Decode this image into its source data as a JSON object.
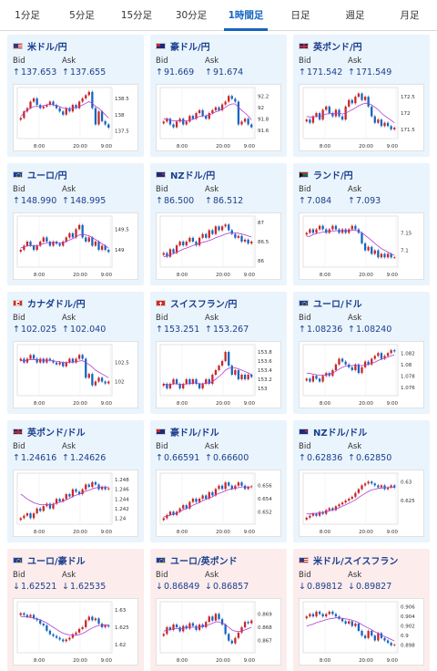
{
  "tabs": [
    "1分足",
    "5分足",
    "15分足",
    "30分足",
    "1時間足",
    "日足",
    "週足",
    "月足"
  ],
  "active_tab": 4,
  "bid_label": "Bid",
  "ask_label": "Ask",
  "xticks": [
    "8:00",
    "20:00",
    "9:00"
  ],
  "colors": {
    "up": "#c62828",
    "down": "#1565c0",
    "ma": "#b23ccf",
    "accent": "#1565c0",
    "up_bg": "#eaf4fc",
    "down_bg": "#fcecec"
  },
  "pairs": [
    {
      "name": "米ドル/円",
      "flag": "flag-us",
      "dir": "up",
      "arrow": "↑",
      "bid": "137.653",
      "ask": "137.655",
      "yticks": [
        "138.5",
        "138",
        "137.5"
      ],
      "ylim": [
        137.35,
        138.75
      ],
      "close": [
        137.9,
        138.1,
        138.2,
        138.4,
        138.5,
        138.3,
        138.2,
        138.25,
        138.3,
        138.4,
        138.3,
        138.2,
        138.1,
        138.0,
        138.2,
        138.1,
        138.3,
        138.2,
        138.4,
        138.5,
        138.6,
        138.7,
        138.2,
        137.7,
        138.1,
        137.8,
        137.7,
        137.6
      ],
      "ma": [
        137.95,
        138.05,
        138.15,
        138.2,
        138.25,
        138.25,
        138.25,
        138.28,
        138.3,
        138.32,
        138.3,
        138.28,
        138.25,
        138.2,
        138.2,
        138.18,
        138.2,
        138.22,
        138.25,
        138.3,
        138.35,
        138.4,
        138.35,
        138.25,
        138.2,
        138.1,
        138.0,
        137.9
      ]
    },
    {
      "name": "豪ドル/円",
      "flag": "flag-au",
      "dir": "up",
      "arrow": "↑",
      "bid": "91.669",
      "ask": "91.674",
      "yticks": [
        "92.2",
        "92",
        "91.8",
        "91.6"
      ],
      "ylim": [
        91.5,
        92.3
      ],
      "close": [
        91.75,
        91.8,
        91.7,
        91.65,
        91.75,
        91.8,
        91.7,
        91.75,
        91.85,
        91.8,
        91.9,
        91.95,
        91.85,
        91.8,
        91.9,
        91.95,
        92.0,
        91.95,
        92.05,
        92.1,
        92.2,
        92.15,
        92.1,
        91.7,
        91.75,
        91.8,
        91.7,
        91.65
      ],
      "ma": [
        91.8,
        91.8,
        91.78,
        91.76,
        91.76,
        91.77,
        91.76,
        91.76,
        91.78,
        91.79,
        91.81,
        91.84,
        91.85,
        91.85,
        91.87,
        91.89,
        91.92,
        91.94,
        91.97,
        92.0,
        92.04,
        92.06,
        92.06,
        92.0,
        91.95,
        91.9,
        91.85,
        91.78
      ]
    },
    {
      "name": "英ポンド/円",
      "flag": "flag-gb",
      "dir": "up",
      "arrow": "↑",
      "bid": "171.542",
      "ask": "171.549",
      "yticks": [
        "172.5",
        "172",
        "171.5"
      ],
      "ylim": [
        171.3,
        172.7
      ],
      "close": [
        171.8,
        171.7,
        171.9,
        172.0,
        171.8,
        172.1,
        172.2,
        172.0,
        171.9,
        172.1,
        171.9,
        171.8,
        172.2,
        172.4,
        172.3,
        172.5,
        172.6,
        172.4,
        172.5,
        172.2,
        171.9,
        171.7,
        171.8,
        171.6,
        171.7,
        171.6,
        171.5,
        171.55
      ],
      "ma": [
        171.9,
        171.88,
        171.88,
        171.9,
        171.9,
        171.93,
        171.97,
        171.98,
        171.98,
        172.0,
        171.99,
        171.97,
        172.0,
        172.05,
        172.1,
        172.16,
        172.22,
        172.27,
        172.3,
        172.3,
        172.25,
        172.18,
        172.1,
        172.0,
        171.92,
        171.85,
        171.78,
        171.7
      ]
    },
    {
      "name": "ユーロ/円",
      "flag": "flag-eu",
      "dir": "up",
      "arrow": "↑",
      "bid": "148.990",
      "ask": "148.995",
      "yticks": [
        "149.5",
        "149"
      ],
      "ylim": [
        148.65,
        149.75
      ],
      "close": [
        149.0,
        149.1,
        149.2,
        149.1,
        149.0,
        149.1,
        149.2,
        149.3,
        149.2,
        149.1,
        149.2,
        149.15,
        149.1,
        149.2,
        149.3,
        149.4,
        149.3,
        149.5,
        149.6,
        149.3,
        149.2,
        149.3,
        149.1,
        149.2,
        149.0,
        149.1,
        149.0,
        148.95
      ],
      "ma": [
        149.05,
        149.07,
        149.1,
        149.1,
        149.1,
        149.1,
        149.12,
        149.15,
        149.17,
        149.17,
        149.18,
        149.18,
        149.17,
        149.17,
        149.2,
        149.24,
        149.27,
        149.31,
        149.36,
        149.37,
        149.36,
        149.34,
        149.3,
        149.25,
        149.2,
        149.15,
        149.1,
        149.05
      ]
    },
    {
      "name": "NZドル/円",
      "flag": "flag-nz",
      "dir": "up",
      "arrow": "↑",
      "bid": "86.500",
      "ask": "86.512",
      "yticks": [
        "87",
        "86.5",
        "86"
      ],
      "ylim": [
        85.9,
        87.1
      ],
      "close": [
        86.2,
        86.1,
        86.3,
        86.2,
        86.4,
        86.5,
        86.4,
        86.5,
        86.6,
        86.5,
        86.4,
        86.6,
        86.7,
        86.6,
        86.8,
        86.7,
        86.9,
        86.8,
        86.9,
        86.95,
        86.8,
        86.7,
        86.6,
        86.65,
        86.5,
        86.55,
        86.45,
        86.5
      ],
      "ma": [
        86.1,
        86.12,
        86.15,
        86.18,
        86.22,
        86.26,
        86.3,
        86.33,
        86.36,
        86.4,
        86.42,
        86.45,
        86.48,
        86.5,
        86.53,
        86.56,
        86.6,
        86.63,
        86.66,
        86.7,
        86.72,
        86.73,
        86.73,
        86.72,
        86.7,
        86.68,
        86.65,
        86.62
      ]
    },
    {
      "name": "ランド/円",
      "flag": "flag-za",
      "dir": "up",
      "arrow": "↑",
      "bid": "7.084",
      "ask": "7.093",
      "yticks": [
        "7.15",
        "7.1"
      ],
      "ylim": [
        7.06,
        7.19
      ],
      "close": [
        7.15,
        7.16,
        7.15,
        7.16,
        7.17,
        7.16,
        7.15,
        7.16,
        7.17,
        7.16,
        7.15,
        7.16,
        7.15,
        7.16,
        7.17,
        7.16,
        7.15,
        7.12,
        7.1,
        7.11,
        7.09,
        7.1,
        7.08,
        7.09,
        7.08,
        7.09,
        7.08,
        7.08
      ],
      "ma": [
        7.14,
        7.14,
        7.145,
        7.148,
        7.15,
        7.152,
        7.153,
        7.154,
        7.155,
        7.156,
        7.156,
        7.156,
        7.156,
        7.156,
        7.157,
        7.157,
        7.155,
        7.15,
        7.143,
        7.136,
        7.128,
        7.12,
        7.112,
        7.105,
        7.1,
        7.095,
        7.09,
        7.086
      ]
    },
    {
      "name": "カナダドル/円",
      "flag": "flag-ca",
      "dir": "up",
      "arrow": "↑",
      "bid": "102.025",
      "ask": "102.040",
      "yticks": [
        "102.5",
        "102"
      ],
      "ylim": [
        101.7,
        102.9
      ],
      "close": [
        102.6,
        102.5,
        102.6,
        102.7,
        102.6,
        102.5,
        102.6,
        102.5,
        102.6,
        102.55,
        102.5,
        102.45,
        102.5,
        102.4,
        102.5,
        102.6,
        102.5,
        102.6,
        102.7,
        102.6,
        102.1,
        102.2,
        101.9,
        102.0,
        102.1,
        102.0,
        101.95,
        102.0
      ],
      "ma": [
        102.55,
        102.55,
        102.56,
        102.58,
        102.58,
        102.57,
        102.57,
        102.56,
        102.56,
        102.56,
        102.55,
        102.53,
        102.52,
        102.5,
        102.5,
        102.51,
        102.51,
        102.52,
        102.54,
        102.55,
        102.5,
        102.45,
        102.38,
        102.3,
        102.25,
        102.2,
        102.15,
        102.1
      ]
    },
    {
      "name": "スイスフラン/円",
      "flag": "flag-ch",
      "dir": "up",
      "arrow": "↑",
      "bid": "153.251",
      "ask": "153.267",
      "yticks": [
        "153.8",
        "153.6",
        "153.4",
        "153.2",
        "153"
      ],
      "ylim": [
        152.9,
        153.9
      ],
      "close": [
        153.1,
        153.0,
        153.1,
        153.2,
        153.1,
        153.0,
        153.1,
        153.2,
        153.1,
        153.2,
        153.1,
        153.0,
        153.1,
        153.2,
        153.1,
        153.3,
        153.4,
        153.5,
        153.6,
        153.8,
        153.5,
        153.3,
        153.4,
        153.2,
        153.3,
        153.2,
        153.3,
        153.25
      ],
      "ma": [
        153.1,
        153.08,
        153.08,
        153.1,
        153.1,
        153.09,
        153.09,
        153.1,
        153.1,
        153.12,
        153.12,
        153.1,
        153.1,
        153.12,
        153.12,
        153.15,
        153.2,
        153.26,
        153.32,
        153.4,
        153.44,
        153.45,
        153.45,
        153.43,
        153.4,
        153.37,
        153.34,
        153.3
      ]
    },
    {
      "name": "ユーロ/ドル",
      "flag": "flag-eu",
      "dir": "up",
      "arrow": "↑",
      "bid": "1.08236",
      "ask": "1.08240",
      "yticks": [
        "1.082",
        "1.08",
        "1.078",
        "1.076"
      ],
      "ylim": [
        1.075,
        1.083
      ],
      "close": [
        1.0775,
        1.077,
        1.078,
        1.0775,
        1.077,
        1.078,
        1.0785,
        1.078,
        1.079,
        1.08,
        1.081,
        1.0805,
        1.08,
        1.0795,
        1.079,
        1.08,
        1.0785,
        1.0795,
        1.0805,
        1.08,
        1.081,
        1.0815,
        1.082,
        1.081,
        1.0815,
        1.082,
        1.0825,
        1.0823
      ],
      "ma": [
        1.0785,
        1.0784,
        1.0783,
        1.0782,
        1.0781,
        1.0781,
        1.0782,
        1.0783,
        1.0785,
        1.0788,
        1.0792,
        1.0795,
        1.0797,
        1.0798,
        1.0798,
        1.0799,
        1.0798,
        1.0798,
        1.0799,
        1.08,
        1.0802,
        1.0804,
        1.0807,
        1.0809,
        1.0811,
        1.0813,
        1.0815,
        1.0817
      ]
    },
    {
      "name": "英ポンド/ドル",
      "flag": "flag-gb",
      "dir": "up",
      "arrow": "↑",
      "bid": "1.24616",
      "ask": "1.24626",
      "yticks": [
        "1.248",
        "1.246",
        "1.244",
        "1.242",
        "1.24"
      ],
      "ylim": [
        1.2393,
        1.2488
      ],
      "close": [
        1.24,
        1.2405,
        1.241,
        1.24,
        1.241,
        1.242,
        1.2415,
        1.2425,
        1.243,
        1.242,
        1.243,
        1.244,
        1.2435,
        1.244,
        1.245,
        1.2445,
        1.246,
        1.2455,
        1.245,
        1.246,
        1.247,
        1.2465,
        1.2475,
        1.247,
        1.246,
        1.2465,
        1.246,
        1.2462
      ],
      "ma": [
        1.245,
        1.2445,
        1.244,
        1.2436,
        1.2432,
        1.243,
        1.2428,
        1.2428,
        1.2428,
        1.2428,
        1.2429,
        1.2431,
        1.2433,
        1.2435,
        1.2438,
        1.2441,
        1.2445,
        1.2448,
        1.245,
        1.2453,
        1.2456,
        1.2458,
        1.2461,
        1.2463,
        1.2464,
        1.2465,
        1.2465,
        1.2465
      ]
    },
    {
      "name": "豪ドル/ドル",
      "flag": "flag-au",
      "dir": "up",
      "arrow": "↑",
      "bid": "0.66591",
      "ask": "0.66600",
      "yticks": [
        "0.656",
        "0.654",
        "0.652"
      ],
      "ylim": [
        0.6505,
        0.6575
      ],
      "close": [
        0.651,
        0.6515,
        0.652,
        0.6515,
        0.652,
        0.6525,
        0.653,
        0.6525,
        0.6535,
        0.654,
        0.6535,
        0.654,
        0.6545,
        0.654,
        0.655,
        0.6545,
        0.6555,
        0.656,
        0.6555,
        0.6565,
        0.656,
        0.6555,
        0.656,
        0.6565,
        0.656,
        0.6555,
        0.6558,
        0.6559
      ],
      "ma": [
        0.6512,
        0.6513,
        0.6515,
        0.6516,
        0.6518,
        0.652,
        0.6523,
        0.6525,
        0.6527,
        0.653,
        0.6532,
        0.6534,
        0.6537,
        0.6539,
        0.6541,
        0.6543,
        0.6546,
        0.6548,
        0.655,
        0.6552,
        0.6554,
        0.6555,
        0.6556,
        0.6557,
        0.6558,
        0.6558,
        0.6558,
        0.6558
      ]
    },
    {
      "name": "NZドル/ドル",
      "flag": "flag-nz",
      "dir": "up",
      "arrow": "↑",
      "bid": "0.62836",
      "ask": "0.62850",
      "yticks": [
        "0.63",
        "0.625"
      ],
      "ylim": [
        0.6195,
        0.6315
      ],
      "close": [
        0.6205,
        0.621,
        0.6215,
        0.621,
        0.622,
        0.6215,
        0.6225,
        0.623,
        0.6225,
        0.6235,
        0.624,
        0.6245,
        0.625,
        0.6255,
        0.626,
        0.627,
        0.628,
        0.629,
        0.6295,
        0.63,
        0.6295,
        0.629,
        0.6285,
        0.629,
        0.628,
        0.6285,
        0.629,
        0.6284
      ],
      "ma": [
        0.6215,
        0.6215,
        0.6216,
        0.6216,
        0.6218,
        0.6219,
        0.6221,
        0.6223,
        0.6225,
        0.6228,
        0.6231,
        0.6235,
        0.6239,
        0.6243,
        0.6247,
        0.6252,
        0.6258,
        0.6264,
        0.6269,
        0.6274,
        0.6278,
        0.628,
        0.6282,
        0.6283,
        0.6284,
        0.6284,
        0.6285,
        0.6285
      ]
    },
    {
      "name": "ユーロ/豪ドル",
      "flag": "flag-eu",
      "dir": "down",
      "arrow": "↓",
      "bid": "1.62521",
      "ask": "1.62535",
      "yticks": [
        "1.63",
        "1.625",
        "1.62"
      ],
      "ylim": [
        1.6185,
        1.6315
      ],
      "close": [
        1.629,
        1.6285,
        1.628,
        1.6285,
        1.6275,
        1.627,
        1.626,
        1.6255,
        1.624,
        1.623,
        1.6225,
        1.622,
        1.6215,
        1.621,
        1.6215,
        1.622,
        1.623,
        1.6235,
        1.6245,
        1.625,
        1.627,
        1.628,
        1.627,
        1.6275,
        1.626,
        1.625,
        1.6255,
        1.6252
      ],
      "ma": [
        1.628,
        1.628,
        1.6279,
        1.6278,
        1.6276,
        1.6274,
        1.6271,
        1.6267,
        1.6262,
        1.6256,
        1.625,
        1.6244,
        1.6238,
        1.6233,
        1.623,
        1.6228,
        1.6227,
        1.6227,
        1.6229,
        1.6232,
        1.6237,
        1.6243,
        1.6248,
        1.6252,
        1.6255,
        1.6256,
        1.6257,
        1.6257
      ]
    },
    {
      "name": "ユーロ/英ポンド",
      "flag": "flag-eu",
      "dir": "down",
      "arrow": "↓",
      "bid": "0.86849",
      "ask": "0.86857",
      "yticks": [
        "0.869",
        "0.868",
        "0.867"
      ],
      "ylim": [
        0.8663,
        0.8697
      ],
      "close": [
        0.8675,
        0.868,
        0.8678,
        0.8682,
        0.868,
        0.8677,
        0.8681,
        0.8679,
        0.8683,
        0.8681,
        0.8678,
        0.8682,
        0.868,
        0.8684,
        0.8688,
        0.8685,
        0.869,
        0.8686,
        0.8682,
        0.8675,
        0.867,
        0.8668,
        0.8672,
        0.8676,
        0.868,
        0.8684,
        0.8683,
        0.8685
      ],
      "ma": [
        0.8677,
        0.8678,
        0.8678,
        0.8679,
        0.8679,
        0.8679,
        0.8679,
        0.868,
        0.868,
        0.868,
        0.868,
        0.868,
        0.8681,
        0.8681,
        0.8682,
        0.8683,
        0.8684,
        0.8684,
        0.8683,
        0.8682,
        0.868,
        0.8678,
        0.8677,
        0.8677,
        0.8677,
        0.8678,
        0.8679,
        0.868
      ]
    },
    {
      "name": "米ドル/スイスフラン",
      "flag": "flag-us",
      "dir": "down",
      "arrow": "↓",
      "bid": "0.89812",
      "ask": "0.89827",
      "yticks": [
        "0.906",
        "0.904",
        "0.902",
        "0.9",
        "0.898"
      ],
      "ylim": [
        0.897,
        0.9065
      ],
      "close": [
        0.904,
        0.9045,
        0.904,
        0.905,
        0.9045,
        0.904,
        0.9045,
        0.905,
        0.9045,
        0.904,
        0.9035,
        0.903,
        0.9025,
        0.903,
        0.902,
        0.9025,
        0.901,
        0.9,
        0.8995,
        0.901,
        0.9,
        0.899,
        0.9005,
        0.8995,
        0.899,
        0.8985,
        0.898,
        0.8981
      ],
      "ma": [
        0.902,
        0.9022,
        0.9024,
        0.9027,
        0.9029,
        0.9031,
        0.9033,
        0.9035,
        0.9036,
        0.9037,
        0.9037,
        0.9036,
        0.9035,
        0.9034,
        0.9032,
        0.903,
        0.9027,
        0.9023,
        0.9019,
        0.9016,
        0.9012,
        0.9008,
        0.9005,
        0.9001,
        0.8998,
        0.8995,
        0.8992,
        0.8989
      ]
    }
  ]
}
